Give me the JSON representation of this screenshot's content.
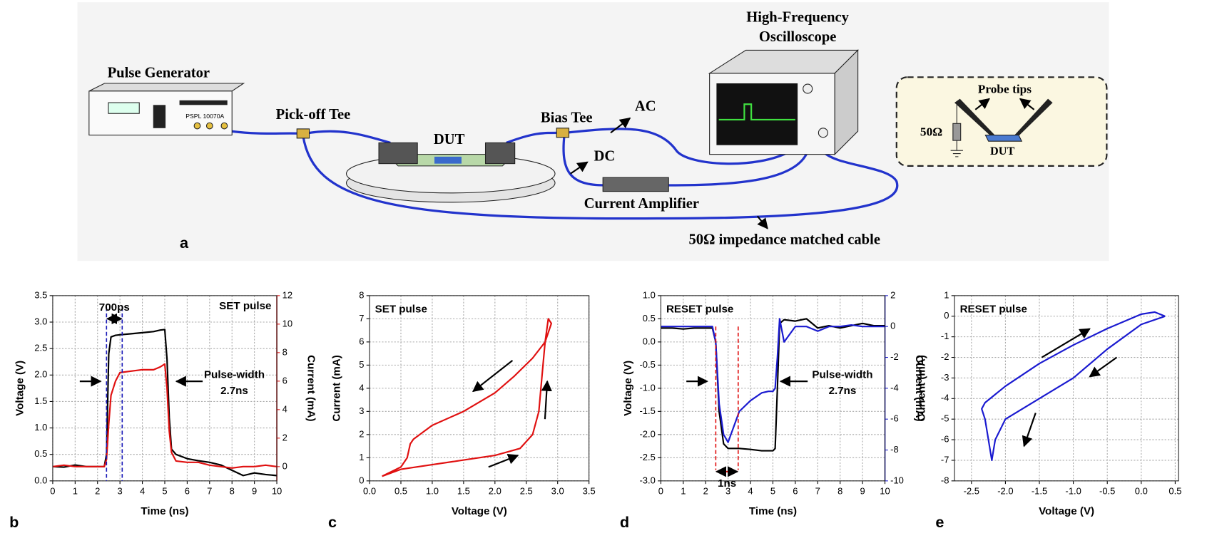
{
  "panel_labels": [
    "a",
    "b",
    "c",
    "d",
    "e"
  ],
  "diagram": {
    "pulse_generator": "Pulse Generator",
    "generator_model": "PSPL 10070A",
    "pickoff_tee": "Pick-off Tee",
    "dut": "DUT",
    "bias_tee": "Bias Tee",
    "ac": "AC",
    "dc": "DC",
    "oscilloscope_line1": "High-Frequency",
    "oscilloscope_line2": "Oscilloscope",
    "current_amplifier": "Current Amplifier",
    "cable": "50Ω impedance matched cable",
    "probe_tips": "Probe tips",
    "resistor": "50Ω",
    "inset_dut": "DUT"
  },
  "chart_data": [
    {
      "type": "line",
      "title": "SET pulse",
      "annotations": [
        "Pulse-width",
        "2.7ns"
      ],
      "span": {
        "label": "700ps",
        "from": 2.4,
        "to": 3.1,
        "color": "#1a1ab8"
      },
      "xlabel": "Time (ns)",
      "ylabel": "Voltage (V)",
      "y2label": "Current (mA)",
      "xlim": [
        0,
        10
      ],
      "xticks": [
        0,
        1,
        2,
        3,
        4,
        5,
        6,
        7,
        8,
        9,
        10
      ],
      "ylim": [
        0,
        3.5
      ],
      "yticks": [
        {
          "value": 0,
          "label": "0.0"
        },
        0.5,
        {
          "value": 1,
          "label": "1.0"
        },
        1.5,
        {
          "value": 2,
          "label": "2.0"
        },
        2.5,
        {
          "value": 3,
          "label": "3.0"
        },
        3.5
      ],
      "y2lim": [
        -1,
        12
      ],
      "y2ticks": [
        0,
        2,
        4,
        6,
        8,
        10,
        12
      ],
      "grid": true,
      "x": [
        0,
        0.5,
        1,
        1.5,
        2,
        2.3,
        2.4,
        2.5,
        2.6,
        2.8,
        3,
        3.5,
        4,
        4.5,
        4.8,
        5,
        5.1,
        5.2,
        5.3,
        5.5,
        6,
        6.5,
        7,
        7.5,
        8,
        8.5,
        9,
        9.5,
        10
      ],
      "series": [
        {
          "name": "Voltage",
          "color": "#000000",
          "values": [
            0.27,
            0.26,
            0.3,
            0.27,
            0.27,
            0.27,
            0.5,
            2.4,
            2.72,
            2.75,
            2.76,
            2.78,
            2.8,
            2.82,
            2.85,
            2.86,
            2.3,
            1.2,
            0.6,
            0.5,
            0.42,
            0.38,
            0.35,
            0.3,
            0.2,
            0.1,
            0.15,
            0.12,
            0.1
          ]
        },
        {
          "name": "Current",
          "color": "#e01010",
          "axis": "y2",
          "values": [
            0,
            0.1,
            0,
            0,
            0,
            0,
            0.5,
            3,
            5,
            6,
            6.6,
            6.7,
            6.8,
            6.8,
            7,
            7.2,
            5.5,
            2.5,
            1,
            0.4,
            0.3,
            0.3,
            0.1,
            0,
            -0.1,
            0,
            0,
            0.1,
            0
          ]
        }
      ]
    },
    {
      "type": "line",
      "title": "SET pulse",
      "xlabel": "Voltage (V)",
      "ylabel": "Current (mA)",
      "xlim": [
        0,
        3.5
      ],
      "xticks": [
        {
          "value": 0,
          "label": "0.0"
        },
        0.5,
        {
          "value": 1,
          "label": "1.0"
        },
        1.5,
        {
          "value": 2,
          "label": "2.0"
        },
        2.5,
        {
          "value": 3,
          "label": "3.0"
        },
        3.5
      ],
      "ylim": [
        0,
        8
      ],
      "yticks": [
        0,
        1,
        2,
        3,
        4,
        5,
        6,
        7,
        8
      ],
      "grid": true,
      "x": [
        0.2,
        0.5,
        1,
        1.5,
        2,
        2.4,
        2.6,
        2.7,
        2.75,
        2.8,
        2.85,
        2.9,
        2.8,
        2.6,
        2.3,
        2,
        1.5,
        1,
        0.7,
        0.65,
        0.6,
        0.5,
        0.2
      ],
      "series": [
        {
          "name": "Current",
          "color": "#e01010",
          "values": [
            0.2,
            0.5,
            0.7,
            0.9,
            1.1,
            1.4,
            2,
            3,
            4.5,
            6,
            7,
            6.8,
            6,
            5.3,
            4.5,
            3.8,
            3,
            2.4,
            1.8,
            1.6,
            1,
            0.6,
            0.2
          ]
        }
      ]
    },
    {
      "type": "line",
      "title": "RESET pulse",
      "annotations": [
        "Pulse-width",
        "2.7ns"
      ],
      "span": {
        "label": "1ns",
        "from": 2.45,
        "to": 3.45,
        "color": "#e01010"
      },
      "xlabel": "Time (ns)",
      "ylabel": "Voltage (V)",
      "y2label": "Current (mA)",
      "xlim": [
        0,
        10
      ],
      "xticks": [
        0,
        1,
        2,
        3,
        4,
        5,
        6,
        7,
        8,
        9,
        10
      ],
      "ylim": [
        -3,
        1
      ],
      "yticks": [
        {
          "value": -3,
          "label": "-3.0"
        },
        -2.5,
        {
          "value": -2,
          "label": "-2.0"
        },
        -1.5,
        {
          "value": -1,
          "label": "-1.0"
        },
        -0.5,
        {
          "value": 0,
          "label": "0.0"
        },
        0.5,
        {
          "value": 1,
          "label": "1.0"
        }
      ],
      "y2lim": [
        -10,
        2
      ],
      "y2ticks": [
        -10,
        -8,
        -6,
        -4,
        -2,
        0,
        2
      ],
      "grid": true,
      "x": [
        0,
        0.5,
        1,
        1.5,
        2,
        2.3,
        2.45,
        2.6,
        2.8,
        3,
        3.5,
        4,
        4.5,
        4.8,
        5,
        5.1,
        5.2,
        5.3,
        5.5,
        6,
        6.5,
        7,
        7.5,
        8,
        8.5,
        9,
        9.5,
        10
      ],
      "series": [
        {
          "name": "Voltage",
          "color": "#000000",
          "values": [
            0.3,
            0.3,
            0.28,
            0.3,
            0.3,
            0.3,
            0,
            -1.5,
            -2.2,
            -2.3,
            -2.3,
            -2.32,
            -2.35,
            -2.35,
            -2.35,
            -2.3,
            -1,
            0.4,
            0.48,
            0.45,
            0.5,
            0.3,
            0.35,
            0.3,
            0.35,
            0.4,
            0.35,
            0.35
          ]
        },
        {
          "name": "Current",
          "color": "#1a1ad0",
          "axis": "y2",
          "values": [
            0,
            0,
            0,
            0,
            0,
            0,
            -1,
            -5,
            -7,
            -7.5,
            -5.5,
            -4.8,
            -4.3,
            -4.2,
            -4.2,
            -4,
            -2,
            0.5,
            -1,
            0,
            0,
            -0.3,
            0,
            0,
            0.1,
            0,
            0,
            0
          ]
        }
      ]
    },
    {
      "type": "line",
      "title": "RESET pulse",
      "xlabel": "Voltage (V)",
      "ylabel": "Current (mA)",
      "xlim": [
        -2.75,
        0.55
      ],
      "xticks": [
        -2.5,
        {
          "value": -2,
          "label": "-2.0"
        },
        -1.5,
        {
          "value": -1,
          "label": "-1.0"
        },
        -0.5,
        {
          "value": 0,
          "label": "0.0"
        },
        0.5
      ],
      "ylim": [
        -8,
        1
      ],
      "yticks": [
        -8,
        -7,
        -6,
        -5,
        -4,
        -3,
        -2,
        -1,
        0,
        1
      ],
      "grid": true,
      "x": [
        0.35,
        0.2,
        0,
        -0.5,
        -1,
        -1.5,
        -2,
        -2.3,
        -2.35,
        -2.3,
        -2.25,
        -2.2,
        -2.15,
        -2,
        -1.5,
        -1,
        -0.5,
        0,
        0.35
      ],
      "series": [
        {
          "name": "Current",
          "color": "#1a1ad0",
          "values": [
            0,
            0.2,
            0.1,
            -0.6,
            -1.4,
            -2.3,
            -3.4,
            -4.2,
            -4.5,
            -5,
            -6,
            -7,
            -6,
            -5,
            -4,
            -3,
            -1.6,
            -0.4,
            0
          ]
        }
      ]
    }
  ]
}
